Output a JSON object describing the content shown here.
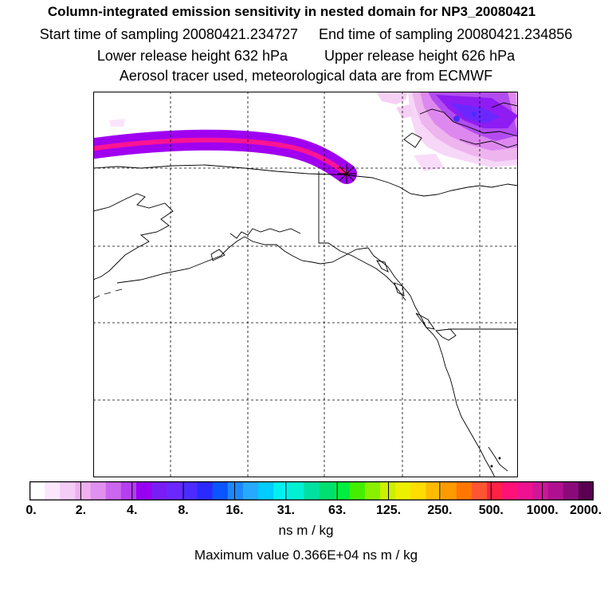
{
  "titles": {
    "line1": "Column-integrated emission sensitivity in nested domain for NP3_20080421",
    "start_label": "Start time of sampling 20080421.234727",
    "end_label": "End time of sampling 20080421.234856",
    "lower_label": "Lower release height  632 hPa",
    "upper_label": "Upper release height  626 hPa",
    "line4": "Aerosol tracer used, meteorological data are from ECMWF"
  },
  "colorbar": {
    "colors": [
      "#ffffff",
      "#fbe6fb",
      "#f5ccf5",
      "#eeb0ee",
      "#e090ee",
      "#cc66ee",
      "#b23ff0",
      "#9800f2",
      "#7a1df5",
      "#6a28ff",
      "#4b2bff",
      "#2a2aff",
      "#0a55ff",
      "#1c88ff",
      "#26aaff",
      "#00ccff",
      "#00f0f0",
      "#00f0d4",
      "#00e0a0",
      "#00e070",
      "#00ee40",
      "#44ee00",
      "#88f000",
      "#ccf000",
      "#eeee00",
      "#ffdd00",
      "#ffbb00",
      "#ff9a00",
      "#ff7700",
      "#ff5533",
      "#ff2244",
      "#ff1177",
      "#ee1190",
      "#d01598",
      "#b01090",
      "#8a0a7a",
      "#5a0050"
    ],
    "tick_labels": [
      "0.",
      "2.",
      "4.",
      "8.",
      "16.",
      "31.",
      "63.",
      "125.",
      "250.",
      "500.",
      "1000.",
      "2000."
    ],
    "units": "ns m / kg"
  },
  "max_value_text": "Maximum value  0.366E+04 ns m / kg",
  "map": {
    "release_marker": "star-marker",
    "plume_colors": [
      "#d4006e",
      "#ff1493",
      "#ff2e2e",
      "#ff8c00",
      "#f2e600",
      "#7fe000",
      "#22cc55",
      "#00aaee",
      "#6a28ff",
      "#a000f0"
    ]
  }
}
